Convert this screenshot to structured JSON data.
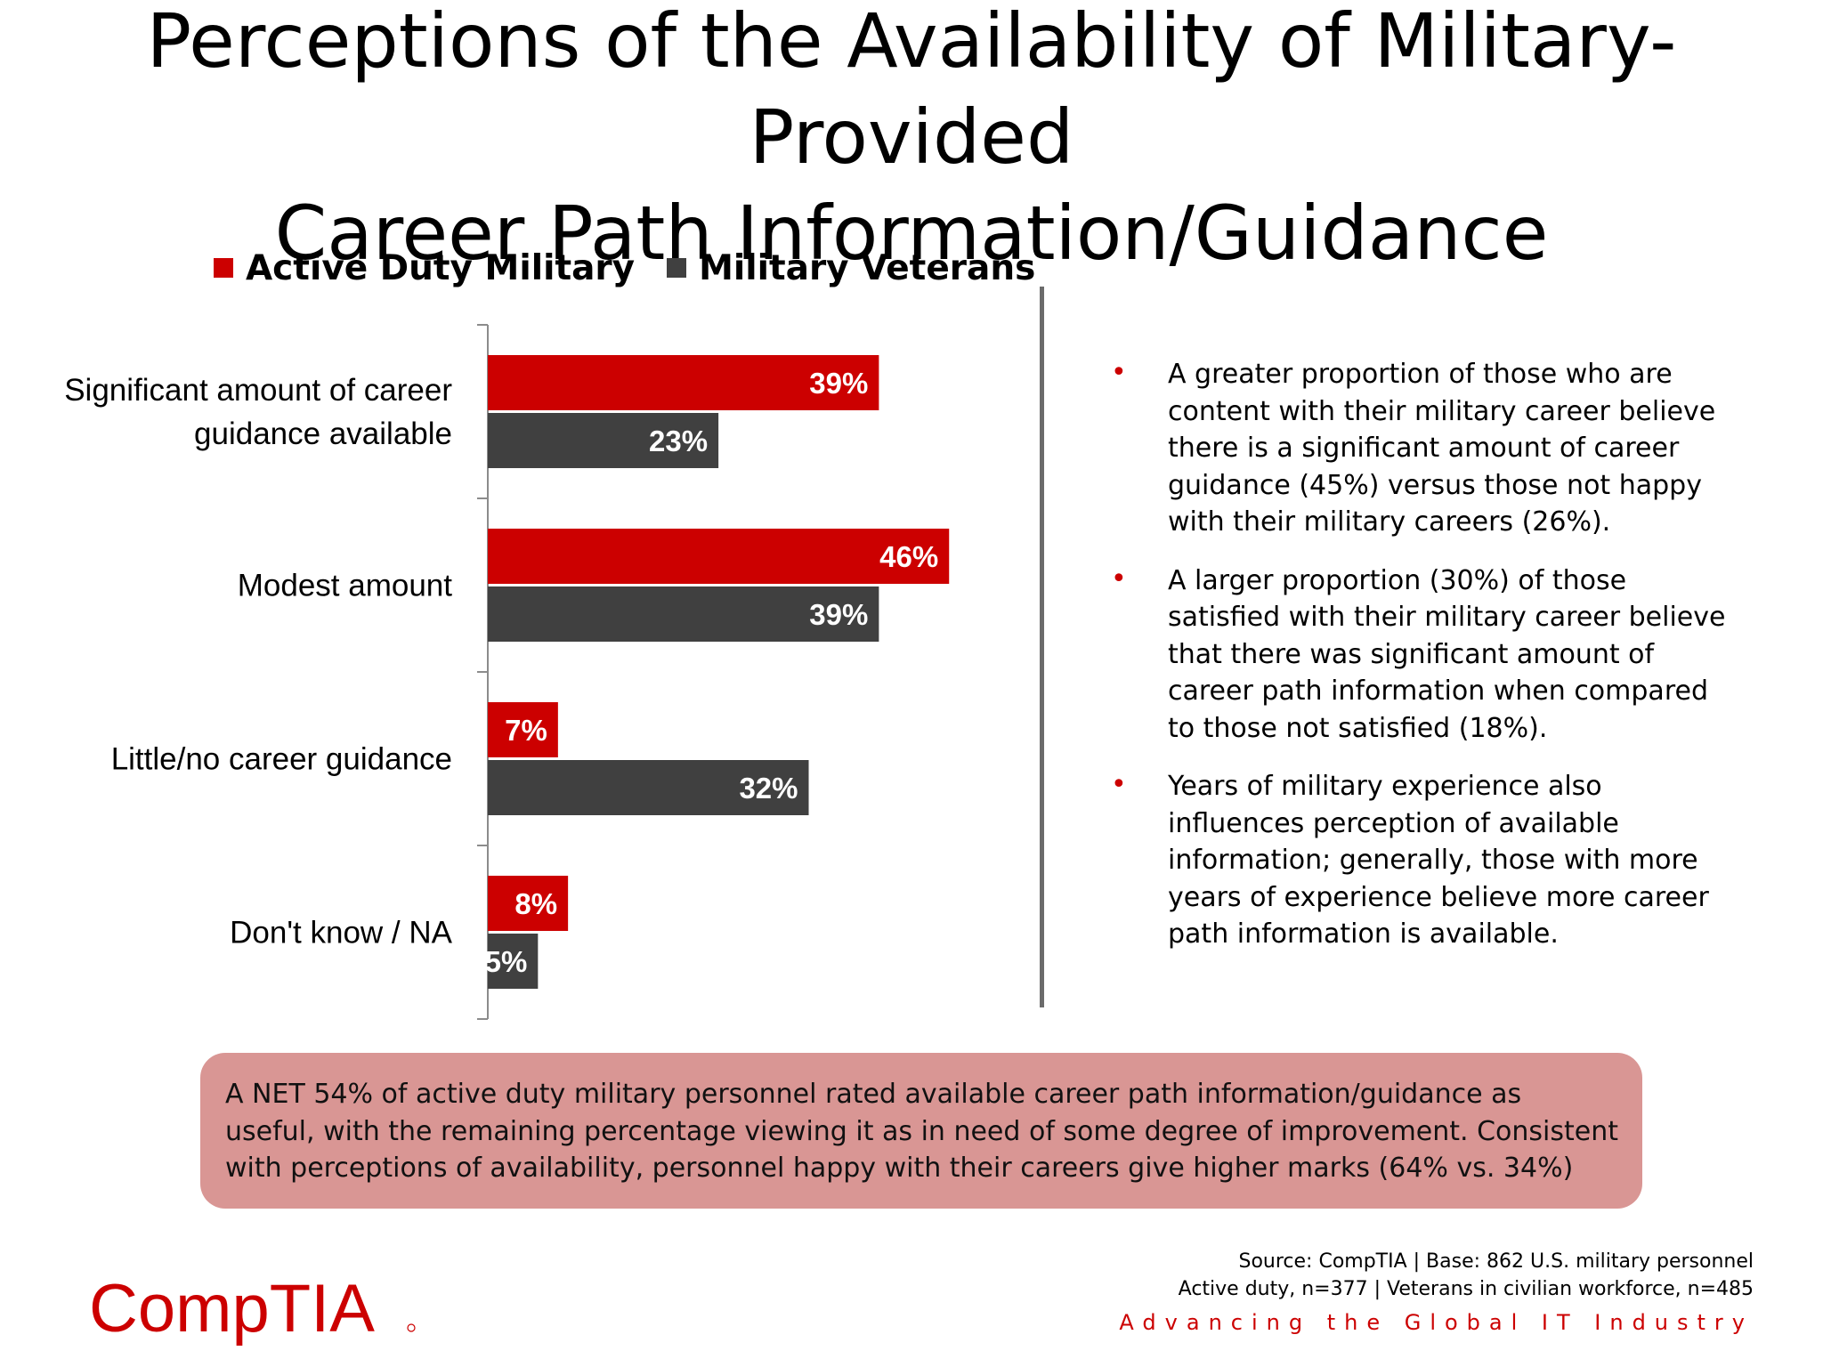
{
  "title": {
    "line1": "Perceptions of the Availability of Military-Provided",
    "line2": "Career Path Information/Guidance"
  },
  "colors": {
    "active": "#cc0000",
    "veterans": "#404040",
    "accent_red": "#cc0000",
    "callout_bg": "#d99694"
  },
  "chart_data": {
    "type": "bar",
    "orientation": "horizontal",
    "title": "",
    "xlabel": "",
    "ylabel": "",
    "unit": "%",
    "xlim": [
      0,
      50
    ],
    "grid": false,
    "legend_position": "top",
    "categories": [
      [
        "Significant amount of career",
        "guidance available"
      ],
      [
        "Modest amount"
      ],
      [
        "Little/no career guidance"
      ],
      [
        "Don't know / NA"
      ]
    ],
    "series": [
      {
        "name": "Active Duty Military",
        "values": [
          39,
          46,
          7,
          8
        ],
        "labels": [
          "39%",
          "46%",
          "7%",
          "8%"
        ]
      },
      {
        "name": "Military Veterans",
        "values": [
          23,
          39,
          32,
          5
        ],
        "labels": [
          "23%",
          "39%",
          "32%",
          "5%"
        ]
      }
    ]
  },
  "bullets": [
    "A greater proportion of those who are content with their military career believe there is a significant amount of career guidance  (45%) versus those not happy with their military careers (26%).",
    "A larger proportion (30%) of those satisfied with their military career believe that there was significant amount of career path information when compared to those not satisfied (18%).",
    "Years of military experience also influences perception of available information; generally, those with more years of experience believe more career path information is available."
  ],
  "bullet_symbol": "•",
  "callout": "A NET 54% of active duty military personnel rated available career path information/guidance as useful, with the remaining percentage viewing it as in need of some degree of improvement. Consistent with perceptions of availability, personnel happy with their careers give higher marks (64% vs. 34%)",
  "source": {
    "line1": "Source: CompTIA | Base: 862 U.S. military personnel",
    "line2": "Active duty, n=377 | Veterans in civilian workforce, n=485"
  },
  "tagline": "Advancing the Global IT Industry",
  "logo": {
    "text": "CompTIA",
    "icon": "comptia-logo"
  }
}
